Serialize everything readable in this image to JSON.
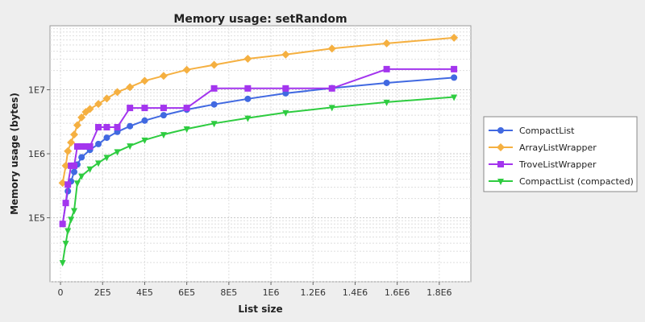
{
  "chart_data": {
    "type": "line",
    "title": "Memory usage: setRandom",
    "xlabel": "List size",
    "ylabel": "Memory usage (bytes)",
    "y_scale": "log",
    "xlim": [
      -50000,
      1950000
    ],
    "ylim": [
      10000,
      100000000
    ],
    "grid": true,
    "legend_position": "right",
    "x_tick_labels": [
      "0",
      "2E5",
      "4E5",
      "6E5",
      "8E5",
      "1E6",
      "1.2E6",
      "1.4E6",
      "1.6E6",
      "1.8E6"
    ],
    "y_tick_labels": [
      "1E5",
      "1E6",
      "1E7"
    ],
    "series": [
      {
        "name": "CompactList",
        "color": "#4169e1",
        "marker": "circle",
        "x": [
          10000,
          25000,
          35000,
          50000,
          65000,
          80000,
          100000,
          140000,
          180000,
          220000,
          270000,
          330000,
          400000,
          490000,
          600000,
          730000,
          890000,
          1070000,
          1290000,
          1550000,
          1870000
        ],
        "y": [
          80000,
          170000,
          260000,
          370000,
          520000,
          680000,
          880000,
          1150000,
          1420000,
          1780000,
          2200000,
          2700000,
          3300000,
          4000000,
          4900000,
          5900000,
          7200000,
          8800000,
          10600000,
          12800000,
          15500000
        ]
      },
      {
        "name": "ArrayListWrapper",
        "color": "#f5b041",
        "marker": "diamond",
        "x": [
          10000,
          25000,
          35000,
          50000,
          65000,
          80000,
          100000,
          120000,
          140000,
          180000,
          220000,
          270000,
          330000,
          400000,
          490000,
          600000,
          730000,
          890000,
          1070000,
          1290000,
          1550000,
          1870000
        ],
        "y": [
          350000,
          650000,
          1100000,
          1500000,
          2000000,
          2800000,
          3700000,
          4500000,
          5000000,
          6000000,
          7300000,
          9200000,
          11000000,
          13800000,
          16500000,
          20500000,
          24500000,
          30500000,
          35500000,
          44000000,
          53000000,
          65000000
        ]
      },
      {
        "name": "TroveListWrapper",
        "color": "#a335ee",
        "marker": "square",
        "x": [
          10000,
          25000,
          35000,
          50000,
          65000,
          80000,
          100000,
          120000,
          140000,
          180000,
          220000,
          270000,
          330000,
          400000,
          490000,
          600000,
          730000,
          890000,
          1070000,
          1290000,
          1550000,
          1870000
        ],
        "y": [
          80000,
          170000,
          330000,
          650000,
          650000,
          1300000,
          1300000,
          1300000,
          1300000,
          2600000,
          2600000,
          2600000,
          5200000,
          5200000,
          5200000,
          5200000,
          10500000,
          10500000,
          10500000,
          10500000,
          21000000,
          21000000
        ]
      },
      {
        "name": "CompactList (compacted)",
        "color": "#2ecc40",
        "marker": "triangle-down",
        "x": [
          10000,
          25000,
          35000,
          50000,
          65000,
          80000,
          100000,
          140000,
          180000,
          220000,
          270000,
          330000,
          400000,
          490000,
          600000,
          730000,
          890000,
          1070000,
          1290000,
          1550000,
          1870000
        ],
        "y": [
          20000,
          40000,
          63000,
          95000,
          130000,
          350000,
          450000,
          580000,
          720000,
          880000,
          1080000,
          1330000,
          1640000,
          2000000,
          2450000,
          2980000,
          3620000,
          4400000,
          5300000,
          6400000,
          7700000
        ]
      }
    ]
  }
}
